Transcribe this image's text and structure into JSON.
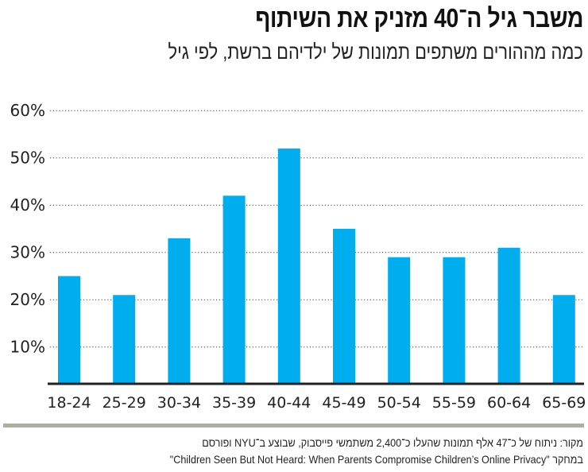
{
  "header": {
    "title": "משבר גיל ה־40 מזניק את השיתוף",
    "subtitle": "כמה מההורים משתפים תמונות של ילדיהם ברשת, לפי גיל"
  },
  "footer": {
    "source_line1": "מקור: ניתוח של כ־47 אלף תמונות שהעלו כ־2,400 משתמשי פייסבוק, שבוצע ב־NYU ופורסם",
    "source_line2": "במחקר \"Children Seen But Not Heard: When Parents Compromise Children’s Online Privacy\""
  },
  "colors": {
    "bar": "#00adef",
    "rule": "#adaea0",
    "axis": "#222222"
  },
  "chart_data": {
    "type": "bar",
    "categories": [
      "18-24",
      "25-29",
      "30-34",
      "35-39",
      "40-44",
      "45-49",
      "50-54",
      "55-59",
      "60-64",
      "65-69"
    ],
    "values": [
      25,
      21,
      33,
      42,
      52,
      35,
      29,
      29,
      31,
      21
    ],
    "yticks": [
      10,
      20,
      30,
      40,
      50,
      60
    ],
    "ytick_labels": [
      "10%",
      "20%",
      "30%",
      "40%",
      "50%",
      "60%"
    ],
    "ylim": [
      0,
      60
    ],
    "grid": "dotted horizontal",
    "legend": "none"
  }
}
